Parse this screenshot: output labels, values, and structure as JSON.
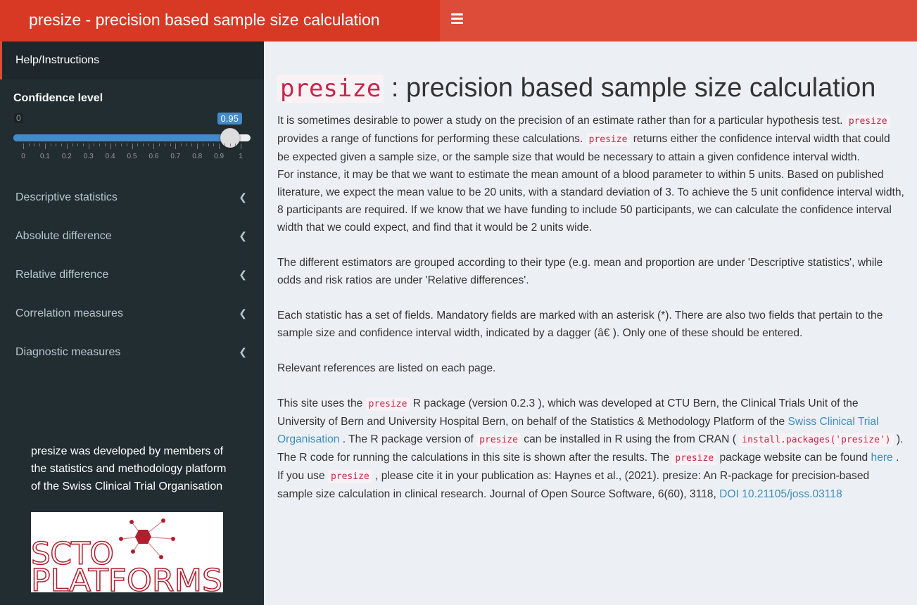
{
  "header": {
    "title": "presize - precision based sample size calculation",
    "menu_icon": "hamburger-icon"
  },
  "sidebar": {
    "help": "Help/Instructions",
    "confidence": {
      "label": "Confidence level",
      "min": 0,
      "max": 1,
      "value": 0.95,
      "min_label": "0",
      "value_label": "0.95",
      "ticks": [
        "0",
        "0.1",
        "0.2",
        "0.3",
        "0.4",
        "0.5",
        "0.6",
        "0.7",
        "0.8",
        "0.9",
        "1"
      ]
    },
    "items": [
      {
        "label": "Descriptive statistics"
      },
      {
        "label": "Absolute difference"
      },
      {
        "label": "Relative difference"
      },
      {
        "label": "Correlation measures"
      },
      {
        "label": "Diagnostic measures"
      }
    ],
    "credit": "presize was developed by members of the statistics and methodology platform of the Swiss Clinical Trial Organisation",
    "logo_text": [
      "SCTO",
      "PLATFORMS"
    ]
  },
  "main": {
    "title_code": "presize",
    "title_rest": " : precision based sample size calculation",
    "paragraphs": [
      [
        {
          "t": "It is sometimes desirable to power a study on the precision of an estimate rather than for a particular hypothesis test. "
        },
        {
          "c": "presize"
        },
        {
          "t": " provides a range of functions for performing these calculations. "
        },
        {
          "c": "presize"
        },
        {
          "t": " returns either the confidence interval width that could be expected given a sample size, or the sample size that would be necessary to attain a given confidence interval width."
        }
      ],
      [
        {
          "t": "For instance, it may be that we want to estimate the mean amount of a blood parameter to within 5 units. Based on published literature, we expect the mean value to be 20 units, with a standard deviation of 3. To achieve the 5 unit confidence interval width, 8 participants are required. If we know that we have funding to include 50 participants, we can calculate the confidence interval width that we could expect, and find that it would be 2 units wide."
        }
      ],
      "gap",
      [
        {
          "t": "The different estimators are grouped according to their type (e.g. mean and proportion are under 'Descriptive statistics', while odds and risk ratios are under 'Relative differences'."
        }
      ],
      "gap",
      [
        {
          "t": "Each statistic has a set of fields. Mandatory fields are marked with an asterisk (*). There are also two fields that pertain to the sample size and confidence interval width, indicated by a dagger (â€ ). Only one of these should be entered."
        }
      ],
      "gap",
      [
        {
          "t": "Relevant references are listed on each page."
        }
      ],
      "gap",
      [
        {
          "t": "This site uses the "
        },
        {
          "c": "presize"
        },
        {
          "t": " R package (version 0.2.3 ), which was developed at CTU Bern, the Clinical Trials Unit of the University of Bern and University Hospital Bern, on behalf of the Statistics & Methodology Platform of the "
        },
        {
          "a": "Swiss Clinical Trial Organisation"
        },
        {
          "t": " . The R package version of "
        },
        {
          "c": "presize"
        },
        {
          "t": " can be installed in R using the from CRAN ( "
        },
        {
          "c": "install.packages('presize')"
        },
        {
          "t": " ). The R code for running the calculations in this site is shown after the results. The "
        },
        {
          "c": "presize"
        },
        {
          "t": " package website can be found "
        },
        {
          "a": "here"
        },
        {
          "t": " ."
        }
      ],
      [
        {
          "t": "If you use "
        },
        {
          "c": "presize"
        },
        {
          "t": " , please cite it in your publication as: Haynes et al., (2021). presize: An R-package for precision-based sample size calculation in clinical research. Journal of Open Source Software, 6(60), 3118, "
        },
        {
          "a": "DOI 10.21105/joss.03118"
        }
      ]
    ]
  },
  "colors": {
    "header": "#dd4b39",
    "logo_bg": "#d73925",
    "sidebar": "#222d32",
    "slider": "#428bca",
    "code": "#c7254e",
    "link": "#3c8dbc",
    "logo_red": "#b01f2e"
  }
}
